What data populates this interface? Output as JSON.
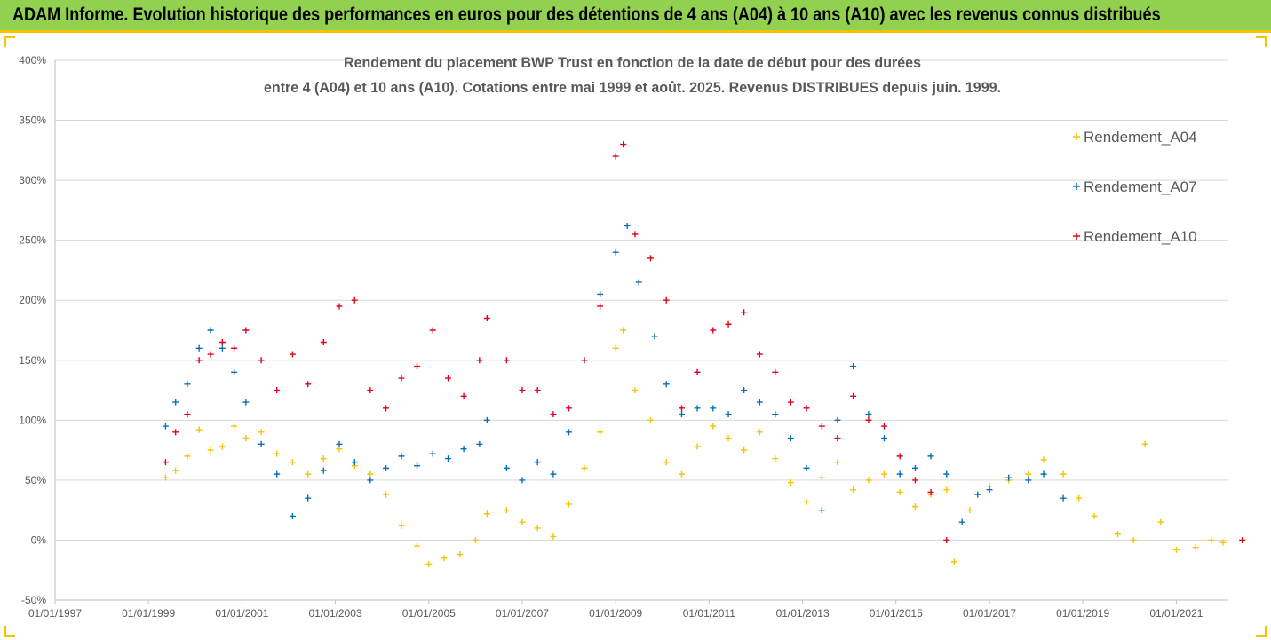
{
  "banner": {
    "text": "ADAM Informe. Evolution historique des performances en euros pour des détentions de 4 ans (A04) à 10 ans (A10) avec les revenus connus distribués"
  },
  "colors": {
    "banner_bg": "#92d050",
    "banner_border": "#f5c400",
    "A04": "#f5c400",
    "A07": "#0a6fb5",
    "A10": "#e3001b",
    "gridline": "#d9d9d9",
    "text": "#595959"
  },
  "chart_data": {
    "type": "scatter",
    "title_lines": [
      "Rendement du placement BWP Trust en fonction de la date de début pour des durées",
      "entre 4 (A04) et 10 ans (A10). Cotations entre mai 1999 et août. 2025. Revenus DISTRIBUES depuis juin. 1999."
    ],
    "xlabel": "",
    "ylabel": "",
    "x_ticks": [
      "01/01/1997",
      "01/01/1999",
      "01/01/2001",
      "01/01/2003",
      "01/01/2005",
      "01/01/2007",
      "01/01/2009",
      "01/01/2011",
      "01/01/2013",
      "01/01/2015",
      "01/01/2017",
      "01/01/2019",
      "01/01/2021"
    ],
    "y_ticks": [
      "-50%",
      "0%",
      "50%",
      "100%",
      "150%",
      "200%",
      "250%",
      "300%",
      "350%",
      "400%"
    ],
    "xlim": [
      "1997-01-01",
      "2022-12-01"
    ],
    "ylim": [
      -50,
      400
    ],
    "y_unit": "%",
    "grid": "horizontal",
    "marker": "+",
    "legend_position": "top-right",
    "series": [
      {
        "name": "Rendement_A04",
        "color": "#f5c400",
        "points": [
          [
            "1999-05-15",
            52
          ],
          [
            "1999-08-01",
            58
          ],
          [
            "1999-11-01",
            70
          ],
          [
            "2000-02-01",
            92
          ],
          [
            "2000-05-01",
            75
          ],
          [
            "2000-08-01",
            78
          ],
          [
            "2000-11-01",
            95
          ],
          [
            "2001-02-01",
            85
          ],
          [
            "2001-06-01",
            90
          ],
          [
            "2001-10-01",
            72
          ],
          [
            "2002-02-01",
            65
          ],
          [
            "2002-06-01",
            55
          ],
          [
            "2002-10-01",
            68
          ],
          [
            "2003-02-01",
            76
          ],
          [
            "2003-06-01",
            62
          ],
          [
            "2003-10-01",
            55
          ],
          [
            "2004-02-01",
            38
          ],
          [
            "2004-06-01",
            12
          ],
          [
            "2004-10-01",
            -5
          ],
          [
            "2005-01-01",
            -20
          ],
          [
            "2005-05-01",
            -15
          ],
          [
            "2005-09-01",
            -12
          ],
          [
            "2006-01-01",
            0
          ],
          [
            "2006-04-01",
            22
          ],
          [
            "2006-09-01",
            25
          ],
          [
            "2007-01-01",
            15
          ],
          [
            "2007-05-01",
            10
          ],
          [
            "2007-09-01",
            3
          ],
          [
            "2008-01-01",
            30
          ],
          [
            "2008-05-01",
            60
          ],
          [
            "2008-09-01",
            90
          ],
          [
            "2009-01-01",
            160
          ],
          [
            "2009-03-01",
            175
          ],
          [
            "2009-06-01",
            125
          ],
          [
            "2009-10-01",
            100
          ],
          [
            "2010-02-01",
            65
          ],
          [
            "2010-06-01",
            55
          ],
          [
            "2010-10-01",
            78
          ],
          [
            "2011-02-01",
            95
          ],
          [
            "2011-06-01",
            85
          ],
          [
            "2011-10-01",
            75
          ],
          [
            "2012-02-01",
            90
          ],
          [
            "2012-06-01",
            68
          ],
          [
            "2012-10-01",
            48
          ],
          [
            "2013-02-01",
            32
          ],
          [
            "2013-06-01",
            52
          ],
          [
            "2013-10-01",
            65
          ],
          [
            "2014-02-01",
            42
          ],
          [
            "2014-06-01",
            50
          ],
          [
            "2014-10-01",
            55
          ],
          [
            "2015-02-01",
            40
          ],
          [
            "2015-06-01",
            28
          ],
          [
            "2015-10-01",
            38
          ],
          [
            "2016-02-01",
            42
          ],
          [
            "2016-04-01",
            -18
          ],
          [
            "2016-08-01",
            25
          ],
          [
            "2017-01-01",
            45
          ],
          [
            "2017-06-01",
            50
          ],
          [
            "2017-11-01",
            55
          ],
          [
            "2018-03-01",
            67
          ],
          [
            "2018-08-01",
            55
          ],
          [
            "2018-12-01",
            35
          ],
          [
            "2019-04-01",
            20
          ],
          [
            "2019-10-01",
            5
          ],
          [
            "2020-02-01",
            0
          ],
          [
            "2020-05-01",
            80
          ],
          [
            "2020-09-01",
            15
          ],
          [
            "2021-01-01",
            -8
          ],
          [
            "2021-06-01",
            -6
          ],
          [
            "2021-10-01",
            0
          ],
          [
            "2022-01-01",
            -2
          ],
          [
            "2022-06-01",
            0
          ]
        ]
      },
      {
        "name": "Rendement_A07",
        "color": "#0a6fb5",
        "points": [
          [
            "1999-05-15",
            95
          ],
          [
            "1999-08-01",
            115
          ],
          [
            "1999-11-01",
            130
          ],
          [
            "2000-02-01",
            160
          ],
          [
            "2000-05-01",
            175
          ],
          [
            "2000-08-01",
            160
          ],
          [
            "2000-11-01",
            140
          ],
          [
            "2001-02-01",
            115
          ],
          [
            "2001-06-01",
            80
          ],
          [
            "2001-10-01",
            55
          ],
          [
            "2002-02-01",
            20
          ],
          [
            "2002-06-01",
            35
          ],
          [
            "2002-10-01",
            58
          ],
          [
            "2003-02-01",
            80
          ],
          [
            "2003-06-01",
            65
          ],
          [
            "2003-10-01",
            50
          ],
          [
            "2004-02-01",
            60
          ],
          [
            "2004-06-01",
            70
          ],
          [
            "2004-10-01",
            62
          ],
          [
            "2005-02-01",
            72
          ],
          [
            "2005-06-01",
            68
          ],
          [
            "2005-10-01",
            76
          ],
          [
            "2006-02-01",
            80
          ],
          [
            "2006-04-01",
            100
          ],
          [
            "2006-09-01",
            60
          ],
          [
            "2007-01-01",
            50
          ],
          [
            "2007-05-01",
            65
          ],
          [
            "2007-09-01",
            55
          ],
          [
            "2008-01-01",
            90
          ],
          [
            "2008-05-01",
            150
          ],
          [
            "2008-09-01",
            205
          ],
          [
            "2009-01-01",
            240
          ],
          [
            "2009-04-01",
            262
          ],
          [
            "2009-07-01",
            215
          ],
          [
            "2009-11-01",
            170
          ],
          [
            "2010-02-01",
            130
          ],
          [
            "2010-06-01",
            105
          ],
          [
            "2010-10-01",
            110
          ],
          [
            "2011-02-01",
            110
          ],
          [
            "2011-06-01",
            105
          ],
          [
            "2011-10-01",
            125
          ],
          [
            "2012-02-01",
            115
          ],
          [
            "2012-06-01",
            105
          ],
          [
            "2012-10-01",
            85
          ],
          [
            "2013-02-01",
            60
          ],
          [
            "2013-06-01",
            25
          ],
          [
            "2013-10-01",
            100
          ],
          [
            "2014-02-01",
            145
          ],
          [
            "2014-06-01",
            105
          ],
          [
            "2014-10-01",
            85
          ],
          [
            "2015-02-01",
            55
          ],
          [
            "2015-06-01",
            60
          ],
          [
            "2015-10-01",
            70
          ],
          [
            "2016-02-01",
            55
          ],
          [
            "2016-06-01",
            15
          ],
          [
            "2016-10-01",
            38
          ],
          [
            "2017-01-01",
            42
          ],
          [
            "2017-06-01",
            52
          ],
          [
            "2017-11-01",
            50
          ],
          [
            "2018-03-01",
            55
          ],
          [
            "2018-08-01",
            35
          ]
        ]
      },
      {
        "name": "Rendement_A10",
        "color": "#e3001b",
        "points": [
          [
            "1999-05-15",
            65
          ],
          [
            "1999-08-01",
            90
          ],
          [
            "1999-11-01",
            105
          ],
          [
            "2000-02-01",
            150
          ],
          [
            "2000-05-01",
            155
          ],
          [
            "2000-08-01",
            165
          ],
          [
            "2000-11-01",
            160
          ],
          [
            "2001-02-01",
            175
          ],
          [
            "2001-06-01",
            150
          ],
          [
            "2001-10-01",
            125
          ],
          [
            "2002-02-01",
            155
          ],
          [
            "2002-06-01",
            130
          ],
          [
            "2002-10-01",
            165
          ],
          [
            "2003-02-01",
            195
          ],
          [
            "2003-06-01",
            200
          ],
          [
            "2003-10-01",
            125
          ],
          [
            "2004-02-01",
            110
          ],
          [
            "2004-06-01",
            135
          ],
          [
            "2004-10-01",
            145
          ],
          [
            "2005-02-01",
            175
          ],
          [
            "2005-06-01",
            135
          ],
          [
            "2005-10-01",
            120
          ],
          [
            "2006-02-01",
            150
          ],
          [
            "2006-04-01",
            185
          ],
          [
            "2006-09-01",
            150
          ],
          [
            "2007-01-01",
            125
          ],
          [
            "2007-05-01",
            125
          ],
          [
            "2007-09-01",
            105
          ],
          [
            "2008-01-01",
            110
          ],
          [
            "2008-05-01",
            150
          ],
          [
            "2008-09-01",
            195
          ],
          [
            "2009-01-01",
            320
          ],
          [
            "2009-03-01",
            330
          ],
          [
            "2009-06-01",
            255
          ],
          [
            "2009-10-01",
            235
          ],
          [
            "2010-02-01",
            200
          ],
          [
            "2010-06-01",
            110
          ],
          [
            "2010-10-01",
            140
          ],
          [
            "2011-02-01",
            175
          ],
          [
            "2011-06-01",
            180
          ],
          [
            "2011-10-01",
            190
          ],
          [
            "2012-02-01",
            155
          ],
          [
            "2012-06-01",
            140
          ],
          [
            "2012-10-01",
            115
          ],
          [
            "2013-02-01",
            110
          ],
          [
            "2013-06-01",
            95
          ],
          [
            "2013-10-01",
            85
          ],
          [
            "2014-02-01",
            120
          ],
          [
            "2014-06-01",
            100
          ],
          [
            "2014-10-01",
            95
          ],
          [
            "2015-02-01",
            70
          ],
          [
            "2015-06-01",
            50
          ],
          [
            "2015-10-01",
            40
          ],
          [
            "2016-02-01",
            0
          ],
          [
            "2022-06-01",
            0
          ]
        ]
      }
    ]
  }
}
